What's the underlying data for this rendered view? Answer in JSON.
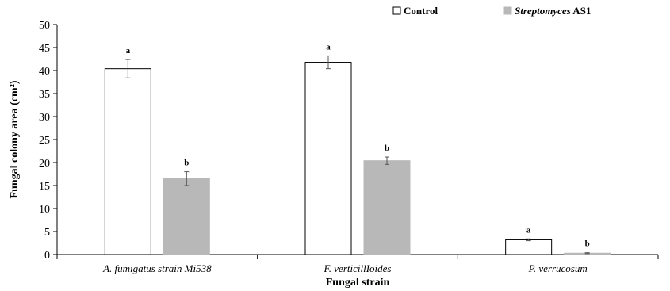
{
  "chart_data": {
    "type": "bar",
    "xlabel": "Fungal strain",
    "ylabel": "Fungal colony area (cm²)",
    "ylim": [
      0,
      50
    ],
    "yticks": [
      0,
      5,
      10,
      15,
      20,
      25,
      30,
      35,
      40,
      45,
      50
    ],
    "categories": [
      "A. fumigatus strain Mi538",
      "F. verticillIoides",
      "P. verrucosum"
    ],
    "legend_position": "top-right",
    "grid": false,
    "series": [
      {
        "name": "Control",
        "legend_prefix": "",
        "legend_italic": "",
        "legend_suffix": "Control",
        "color": "#ffffff",
        "stroke": "#000000",
        "values": [
          40.4,
          41.8,
          3.2
        ],
        "errors": [
          2.0,
          1.4,
          0.2
        ],
        "sig": [
          "a",
          "a",
          "a"
        ]
      },
      {
        "name": "Streptomyces AS1",
        "legend_prefix": "",
        "legend_italic": "Streptomyces",
        "legend_suffix": " AS1",
        "color": "#b8b8b8",
        "stroke": "#b8b8b8",
        "values": [
          16.5,
          20.4,
          0.3
        ],
        "errors": [
          1.5,
          0.8,
          0.1
        ],
        "sig": [
          "b",
          "b",
          "b"
        ]
      }
    ]
  }
}
